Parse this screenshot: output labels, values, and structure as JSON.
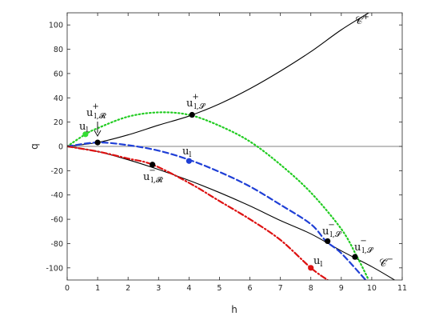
{
  "chart_data": {
    "type": "line",
    "xlabel": "h",
    "ylabel": "q",
    "xlim": [
      0,
      11
    ],
    "ylim": [
      -110,
      110
    ],
    "xticks": [
      0,
      1,
      2,
      3,
      4,
      5,
      6,
      7,
      8,
      9,
      10,
      11
    ],
    "yticks": [
      -100,
      -80,
      -60,
      -40,
      -20,
      0,
      20,
      40,
      60,
      80,
      100
    ],
    "grid": false,
    "curves": [
      {
        "id": "c-plus",
        "style": "solid",
        "color": "#000000",
        "points": [
          [
            0,
            0
          ],
          [
            1,
            3.2
          ],
          [
            2,
            9.5
          ],
          [
            3,
            17.5
          ],
          [
            4,
            25
          ],
          [
            5,
            35
          ],
          [
            6,
            47.5
          ],
          [
            7,
            62
          ],
          [
            8,
            78
          ],
          [
            9,
            96
          ],
          [
            9.9,
            110
          ]
        ]
      },
      {
        "id": "c-minus",
        "style": "solid",
        "color": "#000000",
        "points": [
          [
            0,
            0
          ],
          [
            1,
            -4.2
          ],
          [
            2,
            -11
          ],
          [
            3,
            -19
          ],
          [
            4,
            -28
          ],
          [
            5,
            -38
          ],
          [
            6,
            -49
          ],
          [
            7,
            -61
          ],
          [
            8,
            -72
          ],
          [
            9,
            -86
          ],
          [
            10,
            -99
          ],
          [
            10.75,
            -110
          ]
        ]
      },
      {
        "id": "green-dotted",
        "style": "dotted",
        "color": "#22cc22",
        "points": [
          [
            0,
            0
          ],
          [
            0.6,
            10
          ],
          [
            1,
            15
          ],
          [
            2,
            24.5
          ],
          [
            3,
            28
          ],
          [
            4,
            26
          ],
          [
            5,
            17
          ],
          [
            6,
            4
          ],
          [
            7,
            -15
          ],
          [
            8,
            -38
          ],
          [
            9,
            -68
          ],
          [
            9.5,
            -90
          ],
          [
            9.9,
            -110
          ]
        ]
      },
      {
        "id": "blue-dashed",
        "style": "dashed",
        "color": "#1f3fd6",
        "points": [
          [
            0,
            0
          ],
          [
            1,
            3.2
          ],
          [
            2,
            1
          ],
          [
            3,
            -3.5
          ],
          [
            4,
            -11
          ],
          [
            5,
            -21
          ],
          [
            6,
            -33
          ],
          [
            7,
            -48
          ],
          [
            8,
            -64
          ],
          [
            8.5,
            -78
          ],
          [
            9,
            -88
          ],
          [
            9.8,
            -110
          ]
        ]
      },
      {
        "id": "red-dashdot",
        "style": "dashdot",
        "color": "#dd1111",
        "points": [
          [
            0,
            0
          ],
          [
            1,
            -4.2
          ],
          [
            2,
            -10
          ],
          [
            2.8,
            -15
          ],
          [
            4,
            -30
          ],
          [
            5,
            -45
          ],
          [
            6,
            -60
          ],
          [
            7,
            -77
          ],
          [
            8,
            -100
          ],
          [
            8.55,
            -110
          ]
        ]
      }
    ],
    "markers": [
      {
        "x": 0.6,
        "y": 10,
        "color": "#33dd33"
      },
      {
        "x": 1.0,
        "y": 3.2,
        "color": "#000000"
      },
      {
        "x": 4.1,
        "y": 26,
        "color": "#000000"
      },
      {
        "x": 4.0,
        "y": -12,
        "color": "#1f3fd6"
      },
      {
        "x": 2.8,
        "y": -15,
        "color": "#000000"
      },
      {
        "x": 8.55,
        "y": -78,
        "color": "#000000"
      },
      {
        "x": 9.45,
        "y": -91,
        "color": "#000000"
      },
      {
        "x": 8.0,
        "y": -100,
        "color": "#dd1111"
      }
    ],
    "labels": {
      "c_plus": {
        "base": "𝒞̃",
        "sup": "+"
      },
      "c_minus": {
        "base": "𝒞̃",
        "sup": "−"
      },
      "ul_green": {
        "base": "u",
        "sub": "l"
      },
      "ul_blue": {
        "base": "u",
        "sub": "l"
      },
      "ul_red": {
        "base": "u",
        "sub": "l"
      },
      "ul_R_plus": {
        "base": "u",
        "sub": "l,𝓡",
        "sup": "+"
      },
      "ul_S_plus": {
        "base": "u",
        "sub": "l,𝓢",
        "sup": "+"
      },
      "ul_R_minus": {
        "base": "u",
        "sub": "l,𝓡",
        "sup": "−"
      },
      "ul_S_minus_a": {
        "base": "u",
        "sub": "l,𝓢",
        "sup": "−"
      },
      "ul_S_minus_b": {
        "base": "u",
        "sub": "l,𝓢",
        "sup": "−"
      }
    }
  }
}
